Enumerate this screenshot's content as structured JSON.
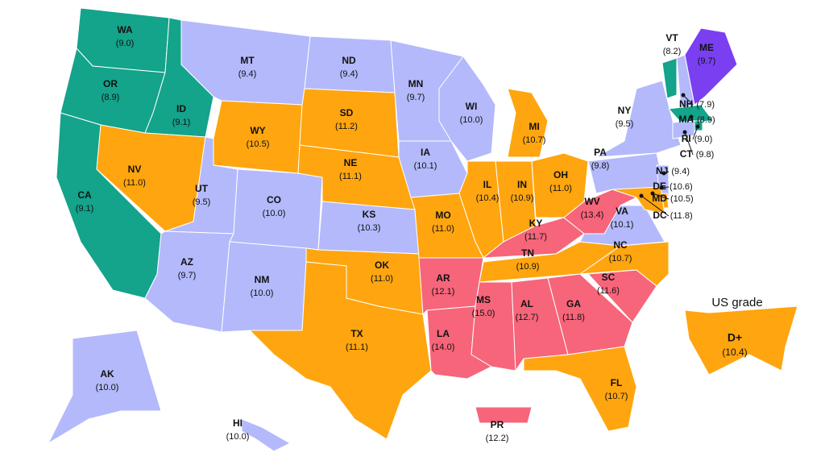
{
  "states": [
    {
      "abbr": "WA",
      "value": "(9.0)",
      "color": "#14a38b"
    },
    {
      "abbr": "OR",
      "value": "(8.9)",
      "color": "#14a38b"
    },
    {
      "abbr": "CA",
      "value": "(9.1)",
      "color": "#14a38b"
    },
    {
      "abbr": "ID",
      "value": "(9.1)",
      "color": "#14a38b"
    },
    {
      "abbr": "NV",
      "value": "(11.0)",
      "color": "#ffa50f"
    },
    {
      "abbr": "MT",
      "value": "(9.4)",
      "color": "#b3b9fb"
    },
    {
      "abbr": "WY",
      "value": "(10.5)",
      "color": "#ffa50f"
    },
    {
      "abbr": "UT",
      "value": "(9.5)",
      "color": "#b3b9fb"
    },
    {
      "abbr": "AZ",
      "value": "(9.7)",
      "color": "#b3b9fb"
    },
    {
      "abbr": "CO",
      "value": "(10.0)",
      "color": "#b3b9fb"
    },
    {
      "abbr": "NM",
      "value": "(10.0)",
      "color": "#b3b9fb"
    },
    {
      "abbr": "ND",
      "value": "(9.4)",
      "color": "#b3b9fb"
    },
    {
      "abbr": "SD",
      "value": "(11.2)",
      "color": "#ffa50f"
    },
    {
      "abbr": "NE",
      "value": "(11.1)",
      "color": "#ffa50f"
    },
    {
      "abbr": "KS",
      "value": "(10.3)",
      "color": "#b3b9fb"
    },
    {
      "abbr": "OK",
      "value": "(11.0)",
      "color": "#ffa50f"
    },
    {
      "abbr": "TX",
      "value": "(11.1)",
      "color": "#ffa50f"
    },
    {
      "abbr": "MN",
      "value": "(9.7)",
      "color": "#b3b9fb"
    },
    {
      "abbr": "IA",
      "value": "(10.1)",
      "color": "#b3b9fb"
    },
    {
      "abbr": "MO",
      "value": "(11.0)",
      "color": "#ffa50f"
    },
    {
      "abbr": "AR",
      "value": "(12.1)",
      "color": "#f6657a"
    },
    {
      "abbr": "LA",
      "value": "(14.0)",
      "color": "#f6657a"
    },
    {
      "abbr": "WI",
      "value": "(10.0)",
      "color": "#b3b9fb"
    },
    {
      "abbr": "IL",
      "value": "(10.4)",
      "color": "#ffa50f"
    },
    {
      "abbr": "MI",
      "value": "(10.7)",
      "color": "#ffa50f"
    },
    {
      "abbr": "IN",
      "value": "(10.9)",
      "color": "#ffa50f"
    },
    {
      "abbr": "OH",
      "value": "(11.0)",
      "color": "#ffa50f"
    },
    {
      "abbr": "KY",
      "value": "(11.7)",
      "color": "#f6657a"
    },
    {
      "abbr": "TN",
      "value": "(10.9)",
      "color": "#ffa50f"
    },
    {
      "abbr": "MS",
      "value": "(15.0)",
      "color": "#f6657a"
    },
    {
      "abbr": "AL",
      "value": "(12.7)",
      "color": "#f6657a"
    },
    {
      "abbr": "GA",
      "value": "(11.8)",
      "color": "#f6657a"
    },
    {
      "abbr": "FL",
      "value": "(10.7)",
      "color": "#ffa50f"
    },
    {
      "abbr": "SC",
      "value": "(11.6)",
      "color": "#f6657a"
    },
    {
      "abbr": "NC",
      "value": "(10.7)",
      "color": "#ffa50f"
    },
    {
      "abbr": "VA",
      "value": "(10.1)",
      "color": "#b3b9fb"
    },
    {
      "abbr": "WV",
      "value": "(13.4)",
      "color": "#f6657a"
    },
    {
      "abbr": "PA",
      "value": "(9.8)",
      "color": "#b3b9fb"
    },
    {
      "abbr": "NY",
      "value": "(9.5)",
      "color": "#b3b9fb"
    },
    {
      "abbr": "VT",
      "value": "(8.2)",
      "color": "#14a38b"
    },
    {
      "abbr": "ME",
      "value": "(9.7)",
      "color": "#b3b9fb"
    },
    {
      "abbr": "NH",
      "value": "(7.9)",
      "color": "#7b3ff2"
    },
    {
      "abbr": "MA",
      "value": "(8.9)",
      "color": "#14a38b"
    },
    {
      "abbr": "RI",
      "value": "(9.0)",
      "color": "#14a38b"
    },
    {
      "abbr": "CT",
      "value": "(9.8)",
      "color": "#b3b9fb"
    },
    {
      "abbr": "NJ",
      "value": "(9.4)",
      "color": "#b3b9fb"
    },
    {
      "abbr": "DE",
      "value": "(10.6)",
      "color": "#ffa50f"
    },
    {
      "abbr": "MD",
      "value": "(10.5)",
      "color": "#ffa50f"
    },
    {
      "abbr": "DC",
      "value": "(11.8)",
      "color": "#f6657a"
    },
    {
      "abbr": "AK",
      "value": "(10.0)",
      "color": "#b3b9fb"
    },
    {
      "abbr": "HI",
      "value": "(10.0)",
      "color": "#b3b9fb"
    },
    {
      "abbr": "PR",
      "value": "(12.2)",
      "color": "#f6657a"
    }
  ],
  "us": {
    "title": "US grade",
    "grade": "D+",
    "value": "(10.4)",
    "color": "#ffa50f"
  }
}
